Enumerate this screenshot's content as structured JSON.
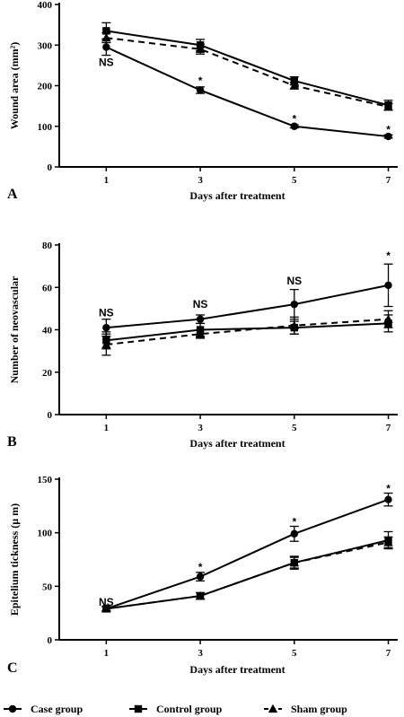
{
  "legend": [
    {
      "key": "case",
      "label": "Case group",
      "marker": "circle",
      "dash": "solid"
    },
    {
      "key": "control",
      "label": "Control group",
      "marker": "square",
      "dash": "solid"
    },
    {
      "key": "sham",
      "label": "Sham group",
      "marker": "triangle",
      "dash": "dashed"
    }
  ],
  "chart_data": [
    {
      "type": "line",
      "panel_label": "A",
      "xlabel": "Days after treatment",
      "ylabel": "Wound area (mm²)",
      "x": [
        1,
        3,
        5,
        7
      ],
      "x_ticks": [
        "1",
        "3",
        "5",
        "7"
      ],
      "xlim": [
        0,
        7.2
      ],
      "ylim": [
        0,
        400
      ],
      "y_ticks": [
        0,
        100,
        200,
        300,
        400
      ],
      "series": [
        {
          "name": "Case group",
          "values": [
            295,
            189,
            100,
            75
          ],
          "errors": [
            20,
            8,
            4,
            4
          ]
        },
        {
          "name": "Control group",
          "values": [
            335,
            300,
            212,
            152
          ],
          "errors": [
            20,
            14,
            10,
            12
          ]
        },
        {
          "name": "Sham group",
          "values": [
            318,
            290,
            200,
            148
          ],
          "errors": [
            12,
            12,
            8,
            8
          ]
        }
      ],
      "annotations": [
        {
          "x": 1,
          "y": 258,
          "text": "NS"
        },
        {
          "x": 3,
          "y": 212,
          "text": "*"
        },
        {
          "x": 5,
          "y": 118,
          "text": "*"
        },
        {
          "x": 7,
          "y": 92,
          "text": "*"
        }
      ]
    },
    {
      "type": "line",
      "panel_label": "B",
      "xlabel": "Days after treatment",
      "ylabel": "Number of neovascular",
      "x": [
        1,
        3,
        5,
        7
      ],
      "x_ticks": [
        "1",
        "3",
        "5",
        "7"
      ],
      "xlim": [
        0,
        7.2
      ],
      "ylim": [
        0,
        80
      ],
      "y_ticks": [
        0,
        20,
        40,
        60,
        80
      ],
      "series": [
        {
          "name": "Case group",
          "values": [
            41,
            45,
            52,
            61
          ],
          "errors": [
            4,
            2,
            7,
            10
          ]
        },
        {
          "name": "Control group",
          "values": [
            35,
            40,
            41,
            43
          ],
          "errors": [
            4,
            3,
            3,
            4
          ]
        },
        {
          "name": "Sham group",
          "values": [
            33,
            38,
            42,
            45
          ],
          "errors": [
            5,
            2,
            4,
            4
          ]
        }
      ],
      "annotations": [
        {
          "x": 1,
          "y": 48,
          "text": "NS"
        },
        {
          "x": 3,
          "y": 52,
          "text": "NS"
        },
        {
          "x": 5,
          "y": 63,
          "text": "NS"
        },
        {
          "x": 7,
          "y": 75,
          "text": "*"
        }
      ]
    },
    {
      "type": "line",
      "panel_label": "C",
      "xlabel": "Days after treatment",
      "ylabel": "Epitelium tickness (µ m)",
      "x": [
        1,
        3,
        5,
        7
      ],
      "x_ticks": [
        "1",
        "3",
        "5",
        "7"
      ],
      "xlim": [
        0,
        7.2
      ],
      "ylim": [
        0,
        150
      ],
      "y_ticks": [
        0,
        50,
        100,
        150
      ],
      "series": [
        {
          "name": "Case group",
          "values": [
            29,
            59,
            99,
            131
          ],
          "errors": [
            2,
            4,
            7,
            6
          ]
        },
        {
          "name": "Control group",
          "values": [
            29,
            41,
            72,
            93
          ],
          "errors": [
            2,
            3,
            6,
            8
          ]
        },
        {
          "name": "Sham group",
          "values": [
            29,
            41,
            72,
            91
          ],
          "errors": [
            2,
            3,
            5,
            5
          ]
        }
      ],
      "annotations": [
        {
          "x": 1,
          "y": 35,
          "text": "NS"
        },
        {
          "x": 3,
          "y": 68,
          "text": "*"
        },
        {
          "x": 5,
          "y": 110,
          "text": "*"
        },
        {
          "x": 7,
          "y": 141,
          "text": "*"
        }
      ]
    }
  ]
}
